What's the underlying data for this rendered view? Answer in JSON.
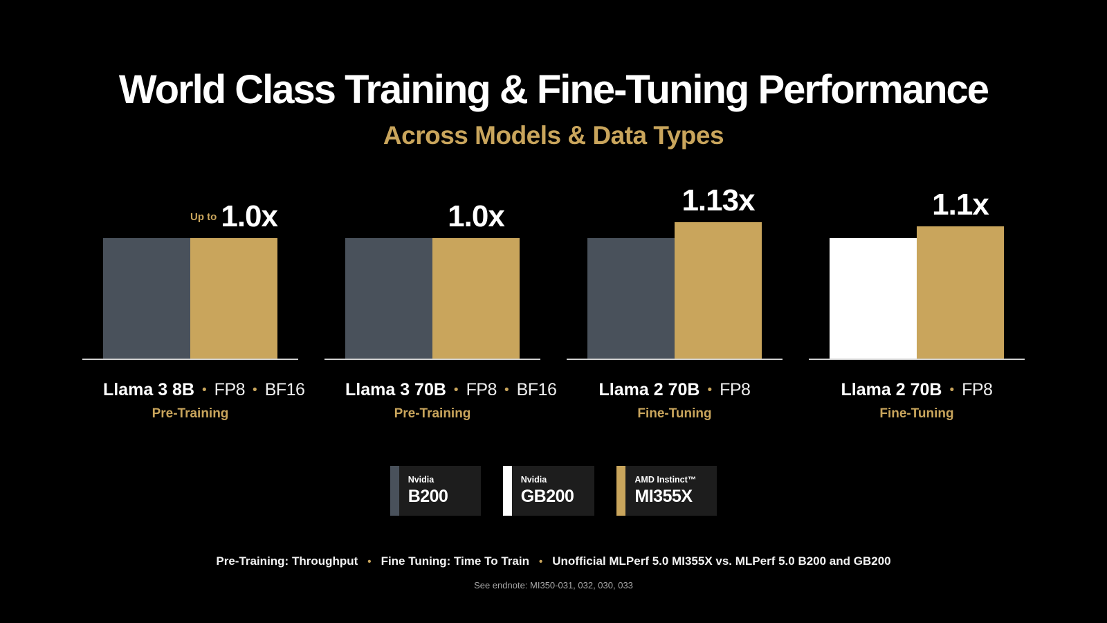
{
  "title": "World Class Training & Fine-Tuning Performance",
  "subtitle": "Across Models & Data Types",
  "chart_data": {
    "type": "bar",
    "value_unit": "relative performance multiplier (x, normalized to Nvidia baseline = 1.0)",
    "groups": [
      {
        "model": "Llama 3 8B",
        "dtypes": [
          "FP8",
          "BF16"
        ],
        "task": "Pre-Training",
        "callout_prefix": "Up to",
        "callout": "1.0x",
        "bars": [
          {
            "series": "Nvidia B200",
            "value": 1.0,
            "color": "#49515B"
          },
          {
            "series": "AMD Instinct MI355X",
            "value": 1.0,
            "color": "#C9A55C"
          }
        ]
      },
      {
        "model": "Llama 3 70B",
        "dtypes": [
          "FP8",
          "BF16"
        ],
        "task": "Pre-Training",
        "callout_prefix": "",
        "callout": "1.0x",
        "bars": [
          {
            "series": "Nvidia B200",
            "value": 1.0,
            "color": "#49515B"
          },
          {
            "series": "AMD Instinct MI355X",
            "value": 1.0,
            "color": "#C9A55C"
          }
        ]
      },
      {
        "model": "Llama 2 70B",
        "dtypes": [
          "FP8"
        ],
        "task": "Fine-Tuning",
        "callout_prefix": "",
        "callout": "1.13x",
        "bars": [
          {
            "series": "Nvidia B200",
            "value": 1.0,
            "color": "#49515B"
          },
          {
            "series": "AMD Instinct MI355X",
            "value": 1.13,
            "color": "#C9A55C"
          }
        ]
      },
      {
        "model": "Llama 2 70B",
        "dtypes": [
          "FP8"
        ],
        "task": "Fine-Tuning",
        "callout_prefix": "",
        "callout": "1.1x",
        "bars": [
          {
            "series": "Nvidia GB200",
            "value": 1.0,
            "color": "#FFFFFF"
          },
          {
            "series": "AMD Instinct MI355X",
            "value": 1.1,
            "color": "#C9A55C"
          }
        ]
      }
    ]
  },
  "legend": [
    {
      "brand": "Nvidia",
      "model": "B200",
      "color": "#49515B"
    },
    {
      "brand": "Nvidia",
      "model": "GB200",
      "color": "#FFFFFF"
    },
    {
      "brand": "AMD Instinct™",
      "model": "MI355X",
      "color": "#C9A55C"
    }
  ],
  "footnote": {
    "separator": "•",
    "segments": [
      "Pre-Training: Throughput",
      "Fine Tuning: Time To Train",
      "Unofficial MLPerf 5.0 MI355X vs. MLPerf 5.0  B200 and GB200"
    ]
  },
  "endnote": "See endnote: MI350-031, 032, 030, 033"
}
